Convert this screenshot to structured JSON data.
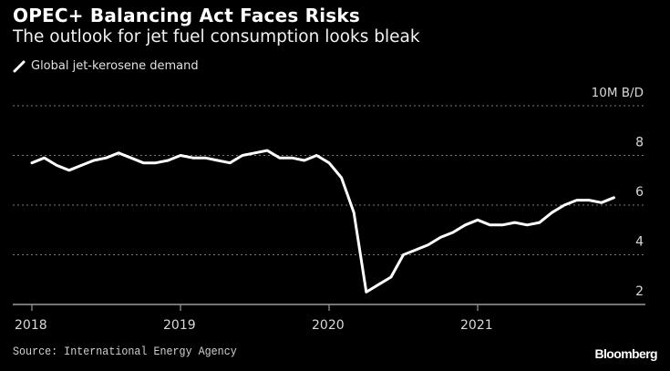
{
  "header": {
    "title": "OPEC+ Balancing Act Faces Risks",
    "subtitle": "The outlook for jet fuel consumption looks bleak"
  },
  "footer": {
    "source": "Source: International Energy Agency",
    "brand": "Bloomberg"
  },
  "chart_data": {
    "type": "line",
    "title": "OPEC+ Balancing Act Faces Risks",
    "subtitle": "The outlook for jet fuel consumption looks bleak",
    "xlabel": "",
    "ylabel": "10M B/D",
    "unit_label": "10M B/D",
    "ylim": [
      2,
      10
    ],
    "yticks": [
      2,
      4,
      6,
      8,
      10
    ],
    "ytick_labels": [
      "2",
      "4",
      "6",
      "8",
      "10M B/D"
    ],
    "xlim": [
      2018.0,
      2022.0
    ],
    "xticks": [
      2018,
      2019,
      2020,
      2021
    ],
    "xtick_labels": [
      "2018",
      "2019",
      "2020",
      "2021"
    ],
    "grid": true,
    "legend": {
      "position": "top-left",
      "entries": [
        "Global jet-kerosene demand"
      ]
    },
    "series": [
      {
        "name": "Global jet-kerosene demand",
        "color": "#ffffff",
        "x": [
          "2018-01",
          "2018-02",
          "2018-03",
          "2018-04",
          "2018-05",
          "2018-06",
          "2018-07",
          "2018-08",
          "2018-09",
          "2018-10",
          "2018-11",
          "2018-12",
          "2019-01",
          "2019-02",
          "2019-03",
          "2019-04",
          "2019-05",
          "2019-06",
          "2019-07",
          "2019-08",
          "2019-09",
          "2019-10",
          "2019-11",
          "2019-12",
          "2020-01",
          "2020-02",
          "2020-03",
          "2020-04",
          "2020-05",
          "2020-06",
          "2020-07",
          "2020-08",
          "2020-09",
          "2020-10",
          "2020-11",
          "2020-12",
          "2021-01",
          "2021-02",
          "2021-03",
          "2021-04",
          "2021-05",
          "2021-06",
          "2021-07",
          "2021-08",
          "2021-09",
          "2021-10",
          "2021-11",
          "2021-12"
        ],
        "values": [
          7.7,
          7.9,
          7.6,
          7.4,
          7.6,
          7.8,
          7.9,
          8.1,
          7.9,
          7.7,
          7.7,
          7.8,
          8.0,
          7.9,
          7.9,
          7.8,
          7.7,
          8.0,
          8.1,
          8.2,
          7.9,
          7.9,
          7.8,
          8.0,
          7.7,
          7.1,
          5.7,
          2.5,
          2.8,
          3.1,
          4.0,
          4.2,
          4.4,
          4.7,
          4.9,
          5.2,
          5.4,
          5.2,
          5.2,
          5.3,
          5.2,
          5.3,
          5.7,
          6.0,
          6.2,
          6.2,
          6.1,
          6.3
        ]
      }
    ]
  }
}
